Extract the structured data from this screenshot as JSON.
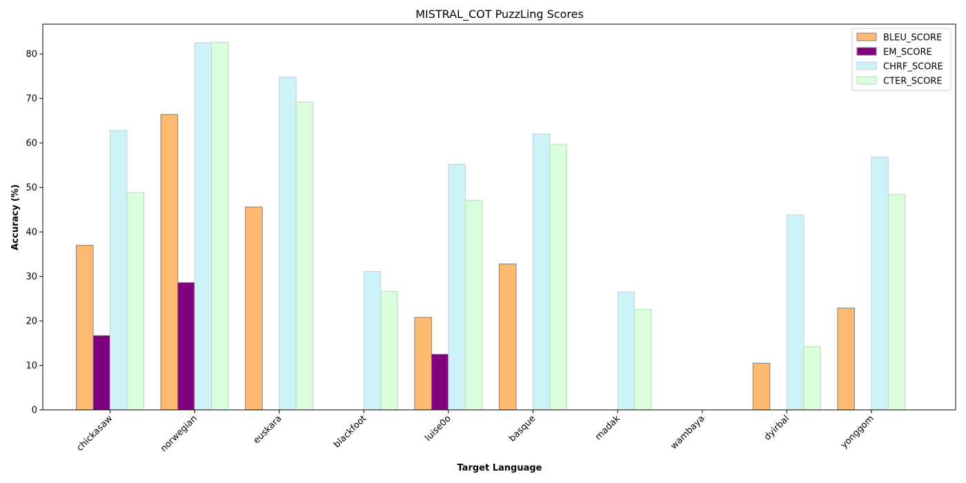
{
  "chart_data": {
    "type": "bar",
    "title": "MISTRAL_COT PuzzLing Scores",
    "xlabel": "Target Language",
    "ylabel": "Accuracy (%)",
    "categories": [
      "chickasaw",
      "norwegian",
      "euskara",
      "blackfoot",
      "luise0o",
      "basque",
      "madak",
      "wambaya",
      "dyirbal",
      "yonggom"
    ],
    "series": [
      {
        "name": "BLEU_SCORE",
        "color": "#ffb870",
        "edge": "#808080",
        "values": [
          37.0,
          66.4,
          45.6,
          0.0,
          20.8,
          32.8,
          0.0,
          0.0,
          10.5,
          22.9
        ]
      },
      {
        "name": "EM_SCORE",
        "color": "#800080",
        "edge": "#808080",
        "values": [
          16.7,
          28.6,
          0.0,
          0.0,
          12.5,
          0.0,
          0.0,
          0.0,
          0.0,
          0.0
        ]
      },
      {
        "name": "CHRF_SCORE",
        "color": "#cdf2f7",
        "edge": "#b8d4dc",
        "values": [
          62.8,
          82.5,
          74.8,
          31.1,
          55.2,
          62.0,
          26.5,
          0.0,
          43.8,
          56.8
        ]
      },
      {
        "name": "CTER_SCORE",
        "color": "#dafedd",
        "edge": "#b8dcbc",
        "values": [
          48.8,
          82.6,
          69.2,
          26.6,
          47.1,
          59.7,
          22.6,
          0.0,
          14.2,
          48.4
        ]
      }
    ],
    "ylim": [
      0,
      86.7
    ],
    "yticks": [
      0,
      10,
      20,
      30,
      40,
      50,
      60,
      70,
      80
    ],
    "grid": false,
    "legend_position": "top-right"
  }
}
